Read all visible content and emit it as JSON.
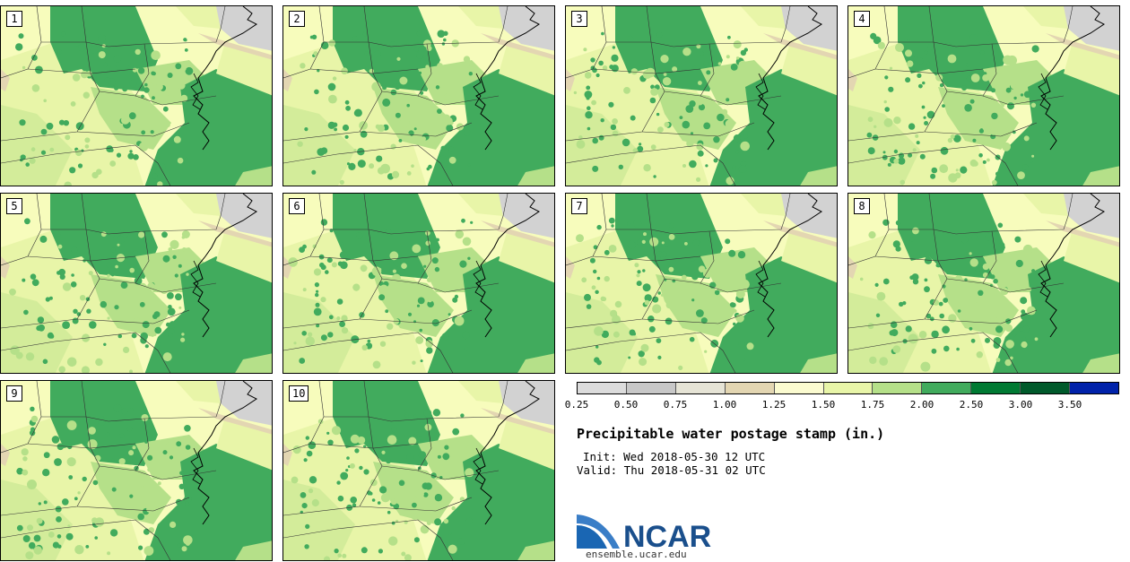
{
  "panels": [
    {
      "label": "1"
    },
    {
      "label": "2"
    },
    {
      "label": "3"
    },
    {
      "label": "4"
    },
    {
      "label": "5"
    },
    {
      "label": "6"
    },
    {
      "label": "7"
    },
    {
      "label": "8"
    },
    {
      "label": "9"
    },
    {
      "label": "10"
    }
  ],
  "legend": {
    "bins": [
      {
        "color": "#dcdcdc"
      },
      {
        "color": "#c8c8c8"
      },
      {
        "color": "#e6e4d6"
      },
      {
        "color": "#e3d6b2"
      },
      {
        "color": "#fbfbd0"
      },
      {
        "color": "#e8f5a8"
      },
      {
        "color": "#b5e089"
      },
      {
        "color": "#41ab5d"
      },
      {
        "color": "#007a33"
      },
      {
        "color": "#005a2b"
      },
      {
        "color": "#0022aa"
      }
    ],
    "ticks": [
      "0.25",
      "0.50",
      "0.75",
      "1.00",
      "1.25",
      "1.50",
      "1.75",
      "2.00",
      "2.50",
      "3.00",
      "3.50"
    ]
  },
  "title": "Precipitable water postage stamp (in.)",
  "init": "Init: Wed 2018-05-30 12 UTC",
  "valid": "Valid: Thu 2018-05-31 02 UTC",
  "logo": {
    "text": "NCAR",
    "url": "ensemble.ucar.edu"
  }
}
